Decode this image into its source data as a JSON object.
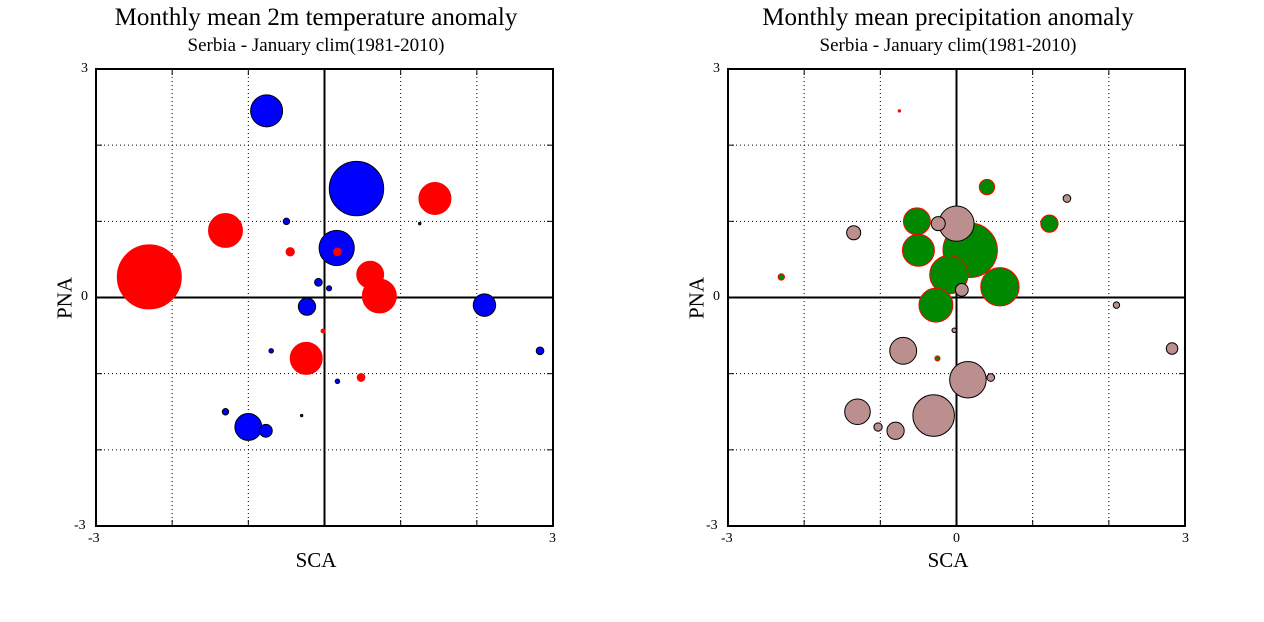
{
  "chart_data": [
    {
      "type": "scatter",
      "title": "Monthly mean 2m temperature anomaly",
      "subtitle": "Serbia - January  clim(1981-2010)",
      "xlabel": "SCA",
      "ylabel": "PNA",
      "xlim": [
        -3,
        3
      ],
      "ylim": [
        -3,
        3
      ],
      "x_ticks": [
        "-3",
        "3"
      ],
      "y_ticks": [
        "3",
        "0",
        "-3"
      ],
      "grid": "dotted",
      "series": [
        {
          "color": "#ff0000",
          "edge": "#ff0000",
          "points": [
            {
              "x": -2.3,
              "y": 0.27,
              "size": 1.0
            },
            {
              "x": -1.3,
              "y": 0.88,
              "size": 0.53
            },
            {
              "x": 1.45,
              "y": 1.3,
              "size": 0.5
            },
            {
              "x": 0.6,
              "y": 0.3,
              "size": 0.42
            },
            {
              "x": 0.72,
              "y": 0.02,
              "size": 0.53
            },
            {
              "x": -0.24,
              "y": -0.8,
              "size": 0.5
            },
            {
              "x": -0.45,
              "y": 0.6,
              "size": 0.13
            },
            {
              "x": 0.17,
              "y": 0.6,
              "size": 0.12
            },
            {
              "x": 0.48,
              "y": -1.05,
              "size": 0.12
            },
            {
              "x": -0.02,
              "y": -0.44,
              "size": 0.06
            }
          ]
        },
        {
          "color": "#0000ff",
          "edge": "#000000",
          "points": [
            {
              "x": 0.42,
              "y": 1.43,
              "size": 0.85
            },
            {
              "x": -0.76,
              "y": 2.45,
              "size": 0.5
            },
            {
              "x": 0.16,
              "y": 0.65,
              "size": 0.55
            },
            {
              "x": 2.1,
              "y": -0.1,
              "size": 0.35
            },
            {
              "x": -0.23,
              "y": -0.12,
              "size": 0.27
            },
            {
              "x": -1.0,
              "y": -1.7,
              "size": 0.42
            },
            {
              "x": -0.77,
              "y": -1.75,
              "size": 0.2
            },
            {
              "x": 2.83,
              "y": -0.7,
              "size": 0.12
            },
            {
              "x": -0.08,
              "y": 0.2,
              "size": 0.12
            },
            {
              "x": -1.3,
              "y": -1.5,
              "size": 0.1
            },
            {
              "x": -0.5,
              "y": 1.0,
              "size": 0.1
            },
            {
              "x": 0.06,
              "y": 0.12,
              "size": 0.08
            },
            {
              "x": -0.7,
              "y": -0.7,
              "size": 0.07
            },
            {
              "x": 0.17,
              "y": -1.1,
              "size": 0.07
            },
            {
              "x": 1.25,
              "y": 0.97,
              "size": 0.03
            },
            {
              "x": -0.3,
              "y": -1.55,
              "size": 0.03
            }
          ]
        }
      ]
    },
    {
      "type": "scatter",
      "title": "Monthly mean precipitation anomaly",
      "subtitle": "Serbia - January  clim(1981-2010)",
      "xlabel": "SCA",
      "ylabel": "PNA",
      "xlim": [
        -3,
        3
      ],
      "ylim": [
        -3,
        3
      ],
      "x_ticks": [
        "-3",
        "0",
        "3"
      ],
      "y_ticks": [
        "3",
        "0",
        "-3"
      ],
      "grid": "dotted",
      "series": [
        {
          "color": "#008800",
          "edge": "#ff0000",
          "points": [
            {
              "x": 0.18,
              "y": 0.62,
              "size": 0.85
            },
            {
              "x": -0.1,
              "y": 0.3,
              "size": 0.6
            },
            {
              "x": 0.57,
              "y": 0.14,
              "size": 0.6
            },
            {
              "x": -0.27,
              "y": -0.1,
              "size": 0.53
            },
            {
              "x": -0.5,
              "y": 0.62,
              "size": 0.5
            },
            {
              "x": -0.52,
              "y": 1.0,
              "size": 0.42
            },
            {
              "x": 1.22,
              "y": 0.97,
              "size": 0.27
            },
            {
              "x": 0.4,
              "y": 1.45,
              "size": 0.24
            },
            {
              "x": -2.3,
              "y": 0.27,
              "size": 0.1
            },
            {
              "x": -0.25,
              "y": -0.8,
              "size": 0.08
            },
            {
              "x": -0.75,
              "y": 2.45,
              "size": 0.03
            }
          ]
        },
        {
          "color": "#bc8f8f",
          "edge": "#000000",
          "points": [
            {
              "x": 0.0,
              "y": 0.97,
              "size": 0.55
            },
            {
              "x": -0.3,
              "y": -1.55,
              "size": 0.65
            },
            {
              "x": 0.15,
              "y": -1.08,
              "size": 0.57
            },
            {
              "x": -0.7,
              "y": -0.7,
              "size": 0.42
            },
            {
              "x": -1.3,
              "y": -1.5,
              "size": 0.4
            },
            {
              "x": -0.8,
              "y": -1.75,
              "size": 0.27
            },
            {
              "x": -1.35,
              "y": 0.85,
              "size": 0.22
            },
            {
              "x": -0.24,
              "y": 0.97,
              "size": 0.22
            },
            {
              "x": 0.07,
              "y": 0.1,
              "size": 0.2
            },
            {
              "x": 2.83,
              "y": -0.67,
              "size": 0.18
            },
            {
              "x": 1.45,
              "y": 1.3,
              "size": 0.12
            },
            {
              "x": 0.45,
              "y": -1.05,
              "size": 0.12
            },
            {
              "x": -1.03,
              "y": -1.7,
              "size": 0.13
            },
            {
              "x": 2.1,
              "y": -0.1,
              "size": 0.1
            },
            {
              "x": -0.03,
              "y": -0.43,
              "size": 0.07
            }
          ]
        }
      ]
    }
  ]
}
